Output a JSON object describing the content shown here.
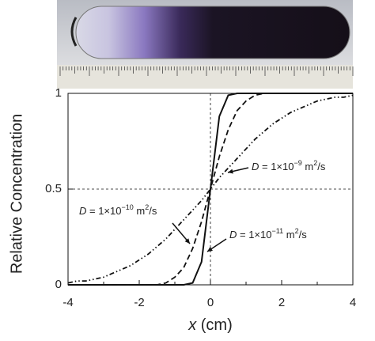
{
  "chart_data": {
    "type": "line",
    "ylabel": "Relative Concentration",
    "xlabel": [
      "x",
      " (cm)"
    ],
    "xlim": [
      -4,
      4
    ],
    "ylim": [
      0,
      1
    ],
    "xticks": [
      -4,
      -2,
      0,
      2,
      4
    ],
    "xminorticks": [
      -3,
      -1,
      1,
      3
    ],
    "yticks": [
      0,
      0.5,
      1
    ],
    "vlines": [
      0
    ],
    "hlines": [
      0.5
    ],
    "x": [
      -4,
      -3.75,
      -3.5,
      -3.25,
      -3,
      -2.75,
      -2.5,
      -2.25,
      -2,
      -1.75,
      -1.5,
      -1.25,
      -1,
      -0.75,
      -0.5,
      -0.25,
      0,
      0.25,
      0.5,
      0.75,
      1,
      1.25,
      1.5,
      1.75,
      2,
      2.25,
      2.5,
      2.75,
      3,
      3.25,
      3.5,
      3.75,
      4
    ],
    "series": [
      {
        "name": [
          "D",
          " = 1×10",
          "−11",
          " m",
          "2",
          "/s"
        ],
        "color": "#111",
        "dash": "none",
        "values": [
          0,
          0,
          0,
          0,
          0,
          0,
          0,
          0,
          0,
          0,
          0,
          0,
          0,
          0,
          0.01,
          0.12,
          0.5,
          0.88,
          0.99,
          1,
          1,
          1,
          1,
          1,
          1,
          1,
          1,
          1,
          1,
          1,
          1,
          1,
          1
        ]
      },
      {
        "name": [
          "D",
          " = 1×10",
          "−10",
          " m",
          "2",
          "/s"
        ],
        "color": "#111",
        "dash": "7 4",
        "values": [
          0,
          0,
          0,
          0,
          0,
          0,
          0,
          0,
          0,
          0,
          0,
          0.01,
          0.04,
          0.09,
          0.19,
          0.33,
          0.5,
          0.67,
          0.81,
          0.91,
          0.96,
          0.99,
          1,
          1,
          1,
          1,
          1,
          1,
          1,
          1,
          1,
          1,
          1
        ]
      },
      {
        "name": [
          "D",
          " = 1×10",
          "−9",
          " m",
          "2",
          "/s"
        ],
        "color": "#111",
        "dash": "6 3 1.5 3 1.5 3",
        "values": [
          0.01,
          0.02,
          0.02,
          0.03,
          0.04,
          0.06,
          0.08,
          0.1,
          0.13,
          0.16,
          0.2,
          0.24,
          0.29,
          0.34,
          0.39,
          0.44,
          0.5,
          0.56,
          0.61,
          0.66,
          0.71,
          0.76,
          0.8,
          0.84,
          0.87,
          0.9,
          0.92,
          0.94,
          0.96,
          0.97,
          0.98,
          0.98,
          0.99
        ]
      }
    ]
  }
}
